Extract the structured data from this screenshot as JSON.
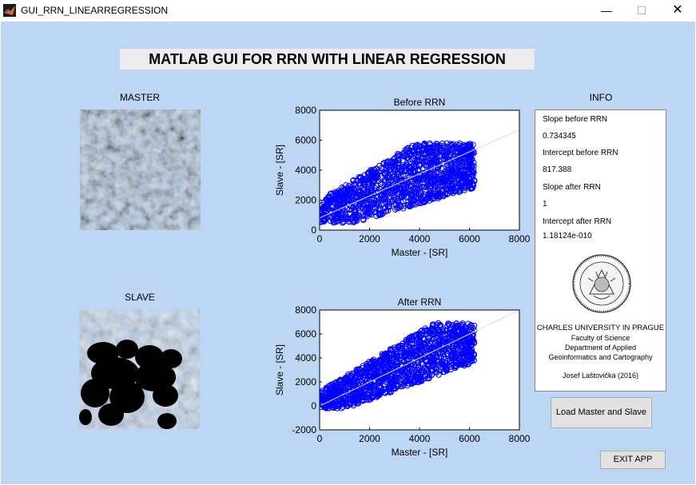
{
  "window": {
    "title": "GUI_RRN_LINEARREGRESSION",
    "minimize": "—",
    "maximize": "☐",
    "close": "✕"
  },
  "heading": "MATLAB GUI FOR RRN WITH LINEAR REGRESSION",
  "master_label": "MASTER",
  "slave_label": "SLAVE",
  "info": {
    "title": "INFO",
    "slope_before_label": "Slope before RRN",
    "slope_before_value": "0.734345",
    "intercept_before_label": "Intercept before RRN",
    "intercept_before_value": "817.388",
    "slope_after_label": "Slope after RRN",
    "slope_after_value": "1",
    "intercept_after_label": "Intercept after RRN",
    "intercept_after_value": "1.18124e-010",
    "university": "CHARLES UNIVERSITY IN PRAGUE",
    "faculty": "Faculty of Science",
    "department_1": "Department of Applied",
    "department_2": "Geoinformatics and Cartography",
    "author": "Josef Laštovička (2016)"
  },
  "buttons": {
    "load": "Load Master and Slave",
    "exit": "EXIT APP"
  },
  "colors": {
    "background": "#bcd6f3",
    "points": "#0000ff",
    "line": "#cccccc"
  },
  "chart_data": [
    {
      "type": "scatter",
      "title": "Before RRN",
      "xlabel": "Master - [SR]",
      "ylabel": "Slave - [SR]",
      "xlim": [
        0,
        8000
      ],
      "ylim": [
        0,
        8000
      ],
      "xticks": [
        "0",
        "2000",
        "4000",
        "6000",
        "8000"
      ],
      "yticks": [
        "0",
        "2000",
        "4000",
        "6000",
        "8000"
      ],
      "fit_line": {
        "slope": 0.734345,
        "intercept": 817.388
      },
      "point_region": {
        "x": [
          0,
          6200
        ],
        "y": [
          500,
          6300
        ]
      }
    },
    {
      "type": "scatter",
      "title": "After RRN",
      "xlabel": "Master - [SR]",
      "ylabel": "Slave - [SR]",
      "xlim": [
        0,
        8000
      ],
      "ylim": [
        -2000,
        8000
      ],
      "xticks": [
        "0",
        "2000",
        "4000",
        "6000",
        "8000"
      ],
      "yticks": [
        "-2000",
        "0",
        "2000",
        "4000",
        "6000",
        "8000"
      ],
      "fit_line": {
        "slope": 1,
        "intercept": 0
      },
      "point_region": {
        "x": [
          0,
          6200
        ],
        "y": [
          -200,
          7400
        ]
      }
    }
  ]
}
